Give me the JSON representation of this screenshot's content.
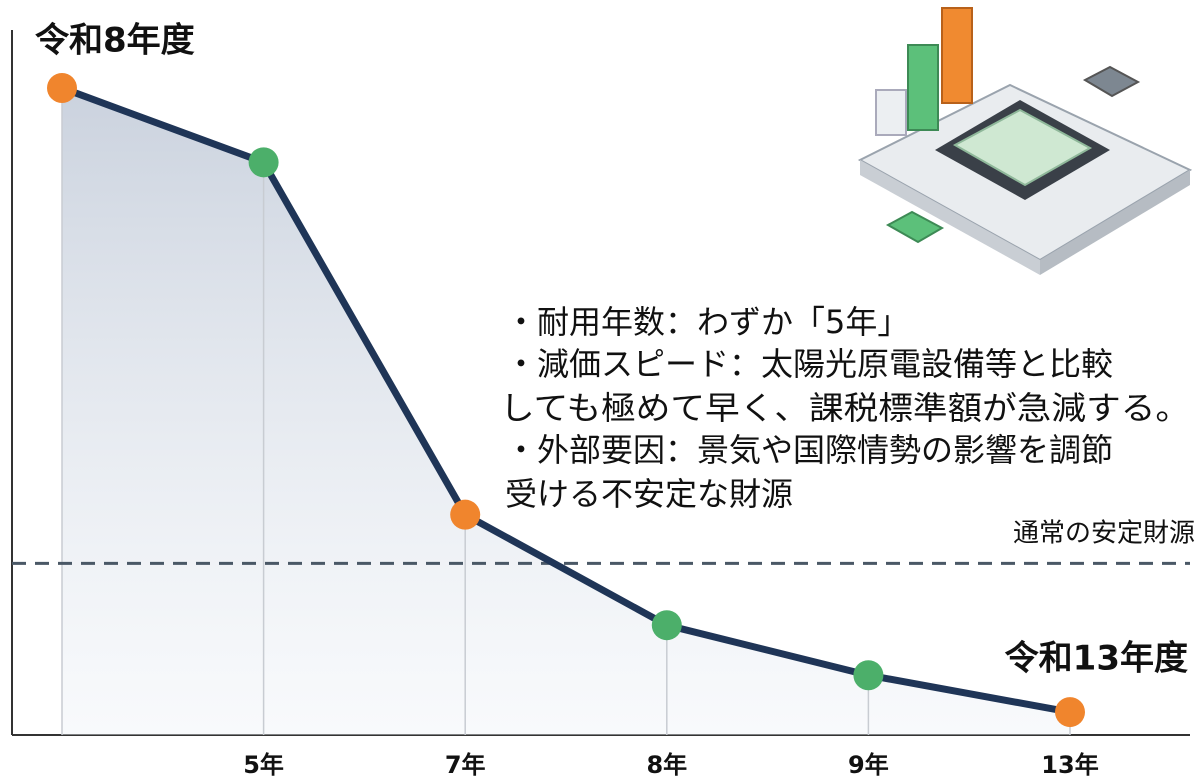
{
  "chart_data": {
    "type": "line",
    "categories": [
      null,
      "5年",
      "7年",
      "8年",
      "9年",
      "13年"
    ],
    "values": [
      93.1,
      82.4,
      31.7,
      15.8,
      8.6,
      3.3
    ],
    "color": "#1f3557",
    "point_colors": [
      "#f0852d",
      "#4caf6a",
      "#f0852d",
      "#4caf6a",
      "#4caf6a",
      "#f0852d"
    ],
    "ylim": [
      0,
      100
    ],
    "grid": true,
    "reference_line": {
      "value": 24.7,
      "label": "通常の安定財源"
    },
    "start_label": "令和8年度",
    "end_label": "令和13年度",
    "annotation_lines": [
      "・耐用年数：わずか「5年」",
      "・減価スピード：太陽光原電設備等と比較",
      "しても極めて早く、課税標準額が急減する。",
      "・外部要因：景気や国際情勢の影響を調節",
      "受ける不安定な財源"
    ]
  }
}
